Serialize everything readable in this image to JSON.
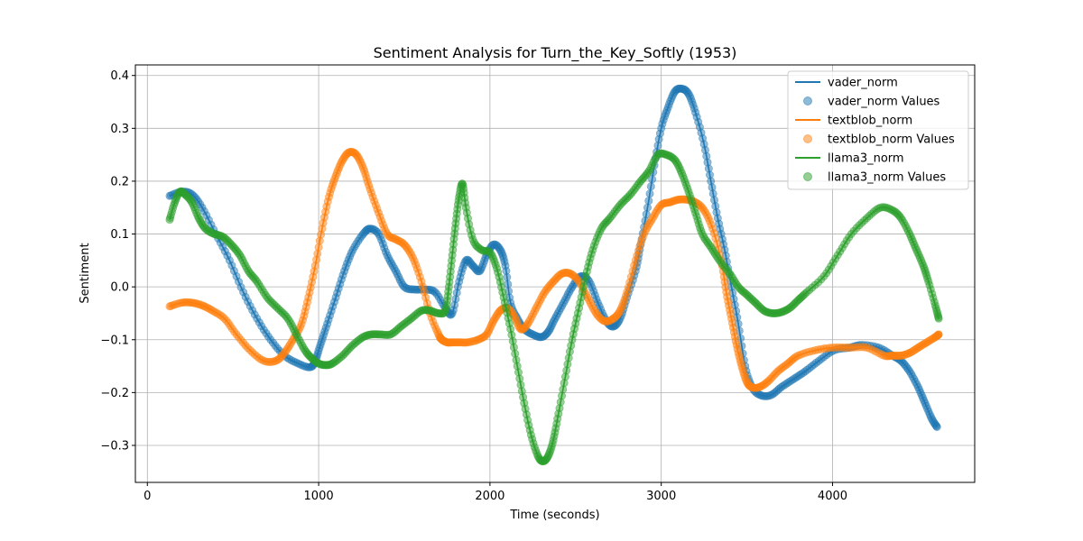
{
  "chart_data": {
    "type": "line",
    "title": "Sentiment Analysis for Turn_the_Key_Softly (1953)",
    "xlabel": "Time (seconds)",
    "ylabel": "Sentiment",
    "xlim": [
      -70,
      4830
    ],
    "ylim": [
      -0.37,
      0.42
    ],
    "xticks": [
      0,
      1000,
      2000,
      3000,
      4000
    ],
    "yticks": [
      -0.3,
      -0.2,
      -0.1,
      0.0,
      0.1,
      0.2,
      0.3,
      0.4
    ],
    "xtick_labels": [
      "0",
      "1000",
      "2000",
      "3000",
      "4000"
    ],
    "ytick_labels": [
      "−0.3",
      "−0.2",
      "−0.1",
      "0.0",
      "0.1",
      "0.2",
      "0.3",
      "0.4"
    ],
    "grid": true,
    "legend_position": "top-right",
    "legend": [
      "vader_norm",
      "vader_norm Values",
      "textblob_norm",
      "textblob_norm Values",
      "llama3_norm",
      "llama3_norm Values"
    ],
    "series": [
      {
        "name": "vader_norm",
        "values_label": "vader_norm Values",
        "color": "#1f77b4",
        "x": [
          130,
          200,
          260,
          320,
          400,
          480,
          560,
          640,
          720,
          800,
          880,
          950,
          980,
          1010,
          1050,
          1100,
          1150,
          1200,
          1260,
          1300,
          1350,
          1400,
          1450,
          1500,
          1560,
          1620,
          1680,
          1740,
          1780,
          1820,
          1860,
          1900,
          1940,
          1980,
          2020,
          2060,
          2090,
          2120,
          2160,
          2200,
          2250,
          2300,
          2340,
          2380,
          2430,
          2480,
          2530,
          2580,
          2630,
          2680,
          2720,
          2760,
          2800,
          2850,
          2880,
          2920,
          2960,
          3000,
          3040,
          3080,
          3120,
          3160,
          3200,
          3250,
          3290,
          3330,
          3370,
          3410,
          3450,
          3490,
          3530,
          3580,
          3640,
          3700,
          3770,
          3840,
          3920,
          4010,
          4100,
          4170,
          4270,
          4350,
          4400,
          4450,
          4500,
          4540,
          4580,
          4610
        ],
        "y": [
          0.172,
          0.18,
          0.175,
          0.15,
          0.1,
          0.05,
          -0.01,
          -0.06,
          -0.1,
          -0.13,
          -0.145,
          -0.152,
          -0.14,
          -0.11,
          -0.07,
          -0.02,
          0.03,
          0.07,
          0.1,
          0.11,
          0.1,
          0.06,
          0.03,
          0.0,
          -0.005,
          -0.005,
          -0.01,
          -0.04,
          -0.05,
          0.01,
          0.05,
          0.04,
          0.03,
          0.06,
          0.08,
          0.07,
          0.04,
          -0.03,
          -0.06,
          -0.08,
          -0.09,
          -0.095,
          -0.085,
          -0.06,
          -0.03,
          0.0,
          0.02,
          0.01,
          -0.03,
          -0.065,
          -0.075,
          -0.06,
          -0.02,
          0.03,
          0.08,
          0.15,
          0.23,
          0.3,
          0.34,
          0.37,
          0.375,
          0.365,
          0.33,
          0.27,
          0.2,
          0.13,
          0.07,
          0.0,
          -0.07,
          -0.15,
          -0.19,
          -0.205,
          -0.205,
          -0.19,
          -0.175,
          -0.16,
          -0.14,
          -0.12,
          -0.115,
          -0.11,
          -0.115,
          -0.13,
          -0.14,
          -0.16,
          -0.19,
          -0.22,
          -0.25,
          -0.265
        ]
      },
      {
        "name": "textblob_norm",
        "values_label": "textblob_norm Values",
        "color": "#ff7f0e",
        "x": [
          130,
          200,
          260,
          320,
          380,
          450,
          520,
          600,
          680,
          750,
          800,
          850,
          900,
          940,
          980,
          1020,
          1060,
          1100,
          1140,
          1180,
          1220,
          1260,
          1300,
          1350,
          1400,
          1450,
          1500,
          1550,
          1600,
          1650,
          1700,
          1720,
          1750,
          1780,
          1820,
          1870,
          1930,
          1980,
          2020,
          2060,
          2100,
          2140,
          2180,
          2220,
          2270,
          2320,
          2370,
          2420,
          2470,
          2520,
          2570,
          2620,
          2670,
          2720,
          2760,
          2800,
          2850,
          2900,
          2950,
          3000,
          3050,
          3100,
          3150,
          3200,
          3250,
          3300,
          3350,
          3380,
          3410,
          3440,
          3470,
          3500,
          3530,
          3570,
          3620,
          3680,
          3740,
          3800,
          3900,
          4000,
          4100,
          4200,
          4300,
          4350,
          4400,
          4450,
          4500,
          4550,
          4600,
          4620
        ],
        "y": [
          -0.037,
          -0.03,
          -0.03,
          -0.035,
          -0.045,
          -0.06,
          -0.09,
          -0.12,
          -0.14,
          -0.14,
          -0.125,
          -0.1,
          -0.07,
          -0.02,
          0.04,
          0.11,
          0.17,
          0.21,
          0.24,
          0.255,
          0.25,
          0.225,
          0.185,
          0.14,
          0.1,
          0.09,
          0.08,
          0.055,
          0.01,
          -0.05,
          -0.09,
          -0.1,
          -0.105,
          -0.105,
          -0.105,
          -0.105,
          -0.1,
          -0.09,
          -0.065,
          -0.045,
          -0.04,
          -0.055,
          -0.08,
          -0.07,
          -0.04,
          -0.01,
          0.01,
          0.025,
          0.025,
          0.01,
          -0.02,
          -0.05,
          -0.065,
          -0.06,
          -0.045,
          -0.01,
          0.05,
          0.1,
          0.13,
          0.155,
          0.16,
          0.165,
          0.165,
          0.16,
          0.145,
          0.11,
          0.05,
          -0.01,
          -0.06,
          -0.11,
          -0.15,
          -0.18,
          -0.19,
          -0.19,
          -0.18,
          -0.16,
          -0.145,
          -0.13,
          -0.12,
          -0.115,
          -0.115,
          -0.115,
          -0.13,
          -0.13,
          -0.13,
          -0.125,
          -0.115,
          -0.105,
          -0.095,
          -0.09
        ]
      },
      {
        "name": "llama3_norm",
        "values_label": "llama3_norm Values",
        "color": "#2ca02c",
        "x": [
          130,
          160,
          190,
          220,
          260,
          300,
          340,
          390,
          440,
          490,
          540,
          590,
          640,
          700,
          760,
          820,
          870,
          920,
          960,
          1000,
          1040,
          1080,
          1140,
          1200,
          1260,
          1310,
          1360,
          1420,
          1480,
          1540,
          1600,
          1650,
          1700,
          1740,
          1760,
          1780,
          1800,
          1820,
          1840,
          1860,
          1900,
          1950,
          2000,
          2040,
          2080,
          2120,
          2160,
          2200,
          2240,
          2280,
          2310,
          2340,
          2370,
          2400,
          2440,
          2480,
          2520,
          2560,
          2600,
          2650,
          2700,
          2760,
          2820,
          2880,
          2930,
          2980,
          3030,
          3080,
          3120,
          3160,
          3200,
          3240,
          3290,
          3340,
          3400,
          3450,
          3500,
          3550,
          3600,
          3650,
          3700,
          3750,
          3800,
          3850,
          3950,
          4030,
          4110,
          4200,
          4280,
          4350,
          4400,
          4450,
          4490,
          4530,
          4560,
          4600,
          4620
        ],
        "y": [
          0.127,
          0.16,
          0.18,
          0.175,
          0.16,
          0.13,
          0.11,
          0.1,
          0.095,
          0.08,
          0.06,
          0.03,
          0.01,
          -0.02,
          -0.04,
          -0.06,
          -0.09,
          -0.12,
          -0.135,
          -0.145,
          -0.148,
          -0.145,
          -0.13,
          -0.11,
          -0.095,
          -0.09,
          -0.09,
          -0.09,
          -0.075,
          -0.06,
          -0.045,
          -0.045,
          -0.05,
          -0.045,
          0.0,
          0.06,
          0.12,
          0.17,
          0.195,
          0.15,
          0.09,
          0.07,
          0.065,
          0.035,
          -0.02,
          -0.08,
          -0.15,
          -0.22,
          -0.28,
          -0.32,
          -0.33,
          -0.32,
          -0.29,
          -0.24,
          -0.17,
          -0.1,
          -0.04,
          0.02,
          0.07,
          0.11,
          0.13,
          0.155,
          0.175,
          0.2,
          0.22,
          0.25,
          0.25,
          0.24,
          0.215,
          0.18,
          0.14,
          0.1,
          0.075,
          0.05,
          0.025,
          0.0,
          -0.015,
          -0.03,
          -0.045,
          -0.05,
          -0.048,
          -0.04,
          -0.025,
          -0.01,
          0.02,
          0.06,
          0.1,
          0.13,
          0.15,
          0.145,
          0.13,
          0.1,
          0.07,
          0.04,
          0.01,
          -0.035,
          -0.06
        ]
      }
    ]
  }
}
